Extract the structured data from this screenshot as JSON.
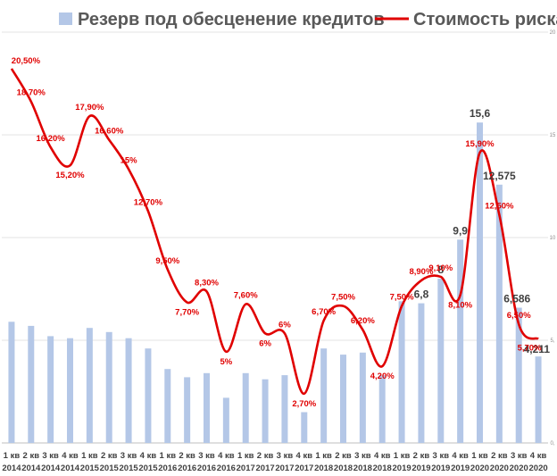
{
  "chart_data": {
    "type": "bar+line",
    "legend": {
      "bar_series": "Резерв под обесценение кредитов",
      "line_series": "Стоимость риска",
      "placement": "top"
    },
    "categories": [
      {
        "q": "1 кв",
        "y": "2014"
      },
      {
        "q": "2 кв",
        "y": "2014"
      },
      {
        "q": "3 кв",
        "y": "2014"
      },
      {
        "q": "4 кв",
        "y": "2014"
      },
      {
        "q": "1 кв",
        "y": "2015"
      },
      {
        "q": "2 кв",
        "y": "2015"
      },
      {
        "q": "3 кв",
        "y": "2015"
      },
      {
        "q": "4 кв",
        "y": "2015"
      },
      {
        "q": "1 кв",
        "y": "2016"
      },
      {
        "q": "2 кв",
        "y": "2016"
      },
      {
        "q": "3 кв",
        "y": "2016"
      },
      {
        "q": "4 кв",
        "y": "2016"
      },
      {
        "q": "1 кв",
        "y": "2017"
      },
      {
        "q": "2 кв",
        "y": "2017"
      },
      {
        "q": "3 кв",
        "y": "2017"
      },
      {
        "q": "4 кв",
        "y": "2017"
      },
      {
        "q": "1 кв",
        "y": "2018"
      },
      {
        "q": "2 кв",
        "y": "2018"
      },
      {
        "q": "3 кв",
        "y": "2018"
      },
      {
        "q": "4 кв",
        "y": "2018"
      },
      {
        "q": "1 кв",
        "y": "2019"
      },
      {
        "q": "2 кв",
        "y": "2019"
      },
      {
        "q": "3 кв",
        "y": "2019"
      },
      {
        "q": "4 кв",
        "y": "2019"
      },
      {
        "q": "1 кв",
        "y": "2020"
      },
      {
        "q": "2 кв",
        "y": "2020"
      },
      {
        "q": "3 кв",
        "y": "2020"
      },
      {
        "q": "4 кв",
        "y": "2020"
      }
    ],
    "series": [
      {
        "kind": "bar",
        "color": "#b4c7e7",
        "axis": "right",
        "values": [
          5.9,
          5.7,
          5.2,
          5.1,
          5.6,
          5.4,
          5.1,
          4.6,
          3.6,
          3.2,
          3.4,
          2.2,
          3.4,
          3.1,
          3.3,
          1.5,
          4.6,
          4.3,
          4.4,
          3.3,
          6.9,
          6.8,
          8,
          9.9,
          15.6,
          12.575,
          6.586,
          4.211
        ],
        "labels": [
          "",
          "",
          "",
          "",
          "",
          "",
          "",
          "",
          "",
          "",
          "",
          "",
          "",
          "",
          "",
          "",
          "",
          "",
          "",
          "",
          "",
          "6,8",
          "8",
          "9,9",
          "15,6",
          "12,575",
          "6,586",
          "4,211"
        ]
      },
      {
        "kind": "line",
        "color": "#e00000",
        "axis": "left",
        "values": [
          20.5,
          18.7,
          16.2,
          15.2,
          17.9,
          16.6,
          15,
          12.7,
          9.5,
          7.7,
          8.3,
          5,
          7.6,
          6,
          6,
          2.7,
          6.7,
          7.5,
          6.2,
          4.2,
          7.5,
          8.9,
          9.1,
          8.1,
          15.9,
          12.5,
          6.5,
          5.7
        ],
        "labels": [
          "20,50%",
          "18,70%",
          "16,20%",
          "15,20%",
          "17,90%",
          "16,60%",
          "15%",
          "12,70%",
          "9,50%",
          "7,70%",
          "8,30%",
          "5%",
          "7,60%",
          "6%",
          "6%",
          "2,70%",
          "6,70%",
          "7,50%",
          "6,20%",
          "4,20%",
          "7,50%",
          "8,90%",
          "9,10%",
          "8,10%",
          "15,90%",
          "12,50%",
          "6,50%",
          "5,70%"
        ]
      }
    ],
    "right_axis": {
      "ticks": [
        "0,",
        "5,",
        "10",
        "15",
        "20"
      ],
      "range": [
        0,
        20
      ]
    },
    "left_axis_range": [
      0,
      22.5
    ],
    "gridlines": true
  }
}
